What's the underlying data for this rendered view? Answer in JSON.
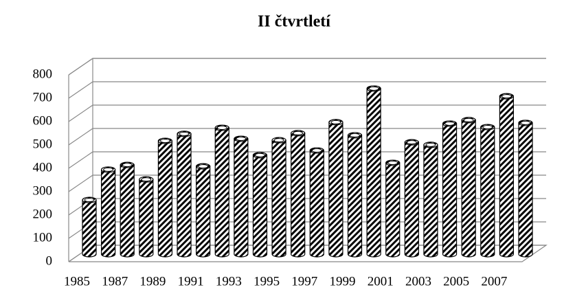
{
  "chart_data": {
    "type": "bar",
    "title": "II čtvrtletí",
    "categories": [
      "1985",
      null,
      "1987",
      null,
      "1989",
      null,
      "1991",
      null,
      "1993",
      null,
      "1995",
      null,
      "1997",
      null,
      "1999",
      null,
      "2001",
      null,
      "2003",
      null,
      "2005",
      null,
      "2007",
      null
    ],
    "values": [
      232,
      362,
      382,
      320,
      485,
      515,
      376,
      541,
      494,
      424,
      488,
      518,
      444,
      565,
      509,
      709,
      391,
      479,
      468,
      559,
      574,
      544,
      676,
      562
    ],
    "color": "#000000",
    "ylim": [
      0,
      800
    ],
    "yticks": [
      0,
      100,
      200,
      300,
      400,
      500,
      600,
      700,
      800
    ],
    "grid": true
  }
}
